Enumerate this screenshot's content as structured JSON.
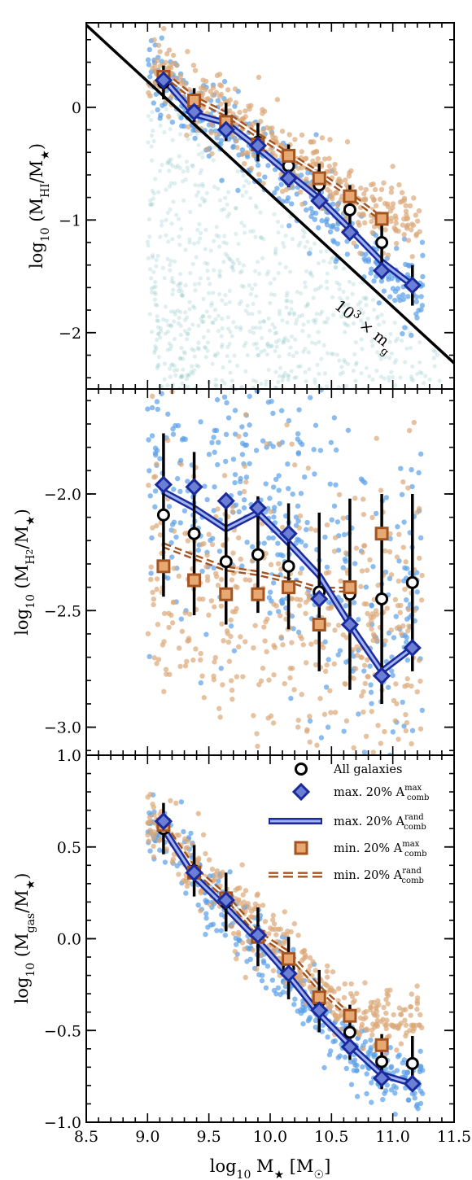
{
  "chart_data": {
    "type": "scatter",
    "x_axis": {
      "label": "log10 M★ [M☉]",
      "range": [
        8.5,
        11.5
      ],
      "ticks": [
        8.5,
        9.0,
        9.5,
        10.0,
        10.5,
        11.0,
        11.5
      ],
      "tick_labels": [
        "8.5",
        "9.0",
        "9.5",
        "10.0",
        "10.5",
        "11.0",
        "11.5"
      ]
    },
    "x_bins": [
      9.13,
      9.38,
      9.64,
      9.9,
      10.15,
      10.4,
      10.65,
      10.91,
      11.16
    ],
    "legend": {
      "placement": "upper-right of bottom panel",
      "entries": [
        {
          "label": "All galaxies"
        },
        {
          "label": "max. 20% A",
          "sup": "max",
          "sub": "comb"
        },
        {
          "label": "max. 20% A",
          "sup": "rand",
          "sub": "comb"
        },
        {
          "label": "min. 20% A",
          "sup": "max",
          "sub": "comb"
        },
        {
          "label": "min. 20% A",
          "sup": "rand",
          "sub": "comb"
        }
      ]
    },
    "colors": {
      "blue_points": "#5aa0e8",
      "orange_points": "#dca878",
      "teal_points": "#6fb4b4",
      "diamond_fill": "#6b7fd4",
      "diamond_edge": "#1a2a9c",
      "blue_line": "#1a2a9c",
      "square_fill": "#e8a872",
      "square_edge": "#a45420",
      "orange_line": "#a45420",
      "black": "#000000"
    },
    "panels": [
      {
        "id": "hi",
        "ylabel": "log10 (MHI/M★)",
        "ylim": [
          -2.5,
          0.75
        ],
        "yticks": [
          -2,
          -1,
          0
        ],
        "ytick_labels": [
          "−2",
          "−1",
          "0"
        ],
        "annotation": "10³ × mg",
        "diagonal_line": {
          "x": [
            8.5,
            11.5
          ],
          "y": [
            0.73,
            -2.27
          ]
        },
        "all_galaxies": {
          "y": [
            0.22,
            0.02,
            -0.13,
            -0.31,
            -0.52,
            -0.69,
            -0.91,
            -1.2,
            -1.58
          ],
          "err": [
            0.15,
            0.15,
            0.17,
            0.17,
            0.19,
            0.19,
            0.22,
            0.22,
            0.18
          ]
        },
        "max_diamonds": [
          0.24,
          -0.04,
          -0.2,
          -0.34,
          -0.63,
          -0.83,
          -1.11,
          -1.45,
          -1.58
        ],
        "max_rand_line": [
          0.25,
          -0.06,
          -0.14,
          -0.36,
          -0.59,
          -0.81,
          -1.08,
          -1.37,
          -1.58
        ],
        "min_squares": [
          0.27,
          0.06,
          -0.13,
          -0.33,
          -0.43,
          -0.63,
          -0.79,
          -0.99
        ],
        "min_rand_line": [
          0.3,
          0.08,
          -0.06,
          -0.25,
          -0.42,
          -0.59,
          -0.78,
          -0.99
        ]
      },
      {
        "id": "h2",
        "ylabel": "log10 (MH2/M★)",
        "ylim": [
          -3.12,
          -1.55
        ],
        "yticks": [
          -3.0,
          -2.5,
          -2.0
        ],
        "ytick_labels": [
          "−3.0",
          "−2.5",
          "−2.0"
        ],
        "all_galaxies": {
          "y": [
            -2.09,
            -2.17,
            -2.29,
            -2.26,
            -2.31,
            -2.42,
            -2.43,
            -2.45,
            -2.38
          ],
          "err": [
            0.35,
            0.35,
            0.27,
            0.25,
            0.27,
            0.34,
            0.41,
            0.45,
            0.38
          ]
        },
        "max_diamonds": [
          -1.96,
          -1.97,
          -2.03,
          -2.06,
          -2.17,
          -2.45,
          -2.56,
          -2.78,
          -2.66
        ],
        "max_rand_line": [
          -1.99,
          -2.06,
          -2.15,
          -2.08,
          -2.21,
          -2.35,
          -2.56,
          -2.76,
          -2.66
        ],
        "min_squares": [
          -2.31,
          -2.37,
          -2.43,
          -2.43,
          -2.4,
          -2.56,
          -2.4,
          -2.17
        ],
        "min_rand_line": [
          -2.22,
          -2.27,
          -2.32,
          -2.34,
          -2.37,
          -2.41,
          -2.41
        ]
      },
      {
        "id": "gas",
        "ylabel": "log10 (Mgas/M★)",
        "ylim": [
          -1.0,
          1.0
        ],
        "yticks": [
          -1.0,
          -0.5,
          0.0,
          0.5,
          1.0
        ],
        "ytick_labels": [
          "−1.0",
          "−0.5",
          "0.0",
          "0.5",
          "1.0"
        ],
        "all_galaxies": {
          "y": [
            0.6,
            0.37,
            0.2,
            0.01,
            -0.16,
            -0.34,
            -0.51,
            -0.67,
            -0.68
          ],
          "err": [
            0.14,
            0.14,
            0.16,
            0.16,
            0.17,
            0.17,
            0.15,
            0.15,
            0.15
          ]
        },
        "max_diamonds": [
          0.64,
          0.36,
          0.21,
          0.02,
          -0.19,
          -0.39,
          -0.59,
          -0.76,
          -0.79
        ],
        "max_rand_line": [
          0.6,
          0.34,
          0.17,
          -0.01,
          -0.2,
          -0.41,
          -0.58,
          -0.74,
          -0.79
        ],
        "min_squares": [
          0.62,
          0.36,
          0.22,
          0.01,
          -0.11,
          -0.32,
          -0.42,
          -0.58
        ],
        "min_rand_line": [
          0.62,
          0.38,
          0.23,
          0.03,
          -0.08,
          -0.27,
          -0.42
        ]
      }
    ]
  }
}
